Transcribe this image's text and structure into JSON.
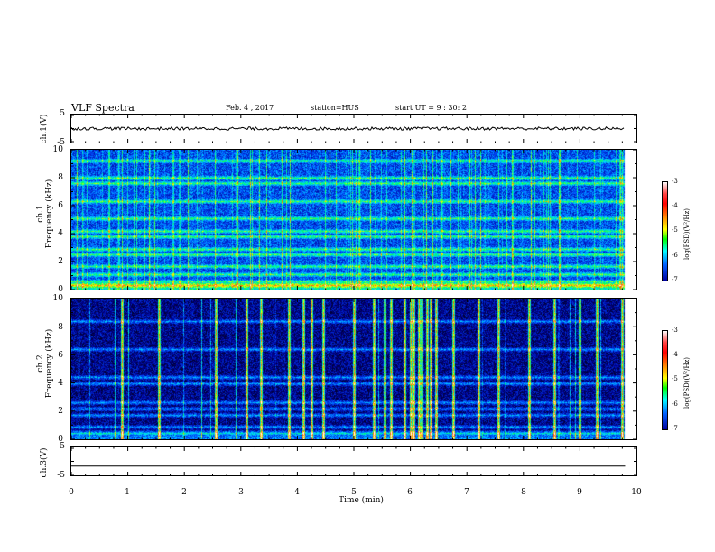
{
  "header": {
    "title": "VLF Spectra",
    "date": "Feb. 4 , 2017",
    "station": "station=HUS",
    "start": "start UT = 9 : 30: 2"
  },
  "chart_data": [
    {
      "type": "line",
      "ylabel": "ch.1(V)",
      "ylim": [
        -5,
        5
      ],
      "yticks": [
        "5",
        "-5"
      ],
      "xlim": [
        0,
        10
      ],
      "trace_level": 0,
      "trace_end_min": 9.8
    },
    {
      "type": "heatmap",
      "ylabel": "ch.1\nFrequency (kHz)",
      "ylabel_line1": "ch.1",
      "ylabel_line2": "Frequency (kHz)",
      "ylim": [
        0,
        10
      ],
      "yticks": [
        "0",
        "2",
        "4",
        "6",
        "8",
        "10"
      ],
      "xlim": [
        0,
        10
      ],
      "data_end_min": 9.8,
      "colorbar": {
        "label": "log(PSD)(V²/Hz)",
        "range": [
          -7,
          -3
        ],
        "ticks": [
          "-3",
          "-4",
          "-5",
          "-6",
          "-7"
        ]
      },
      "bands_khz": [
        0.3,
        0.6,
        1.1,
        1.7,
        2.5,
        2.9,
        3.8,
        4.2,
        5.1,
        6.3,
        7.6,
        8.0,
        9.2
      ]
    },
    {
      "type": "heatmap",
      "ylabel_line1": "ch.2",
      "ylabel_line2": "Frequency (kHz)",
      "ylim": [
        0,
        10
      ],
      "yticks": [
        "0",
        "2",
        "4",
        "6",
        "8",
        "10"
      ],
      "xlim": [
        0,
        10
      ],
      "data_end_min": 9.8,
      "colorbar": {
        "label": "log(PSD)(V²/Hz)",
        "range": [
          -7,
          -3
        ],
        "ticks": [
          "-3",
          "-4",
          "-5",
          "-6",
          "-7"
        ]
      },
      "bands_khz": [
        0.5,
        0.9,
        1.7,
        2.2,
        2.6,
        4.0,
        4.4,
        6.4,
        8.4
      ],
      "spikes_min": [
        0.9,
        1.55,
        2.55,
        3.1,
        3.35,
        3.85,
        4.1,
        4.25,
        4.45,
        5.0,
        5.35,
        5.55,
        5.65,
        5.9,
        6.0,
        6.05,
        6.15,
        6.2,
        6.3,
        6.35,
        6.45,
        6.75,
        7.2,
        7.55,
        8.1,
        8.55,
        9.0,
        9.3,
        9.75
      ]
    },
    {
      "type": "line",
      "ylabel": "ch.3(V)",
      "ylim": [
        -5,
        5
      ],
      "yticks": [
        "5",
        "-5"
      ],
      "xlim": [
        0,
        10
      ],
      "trace_level": -1.8,
      "trace_end_min": 9.8
    }
  ],
  "xaxis": {
    "label": "Time (min)",
    "ticks": [
      "0",
      "1",
      "2",
      "3",
      "4",
      "5",
      "6",
      "7",
      "8",
      "9",
      "10"
    ]
  }
}
